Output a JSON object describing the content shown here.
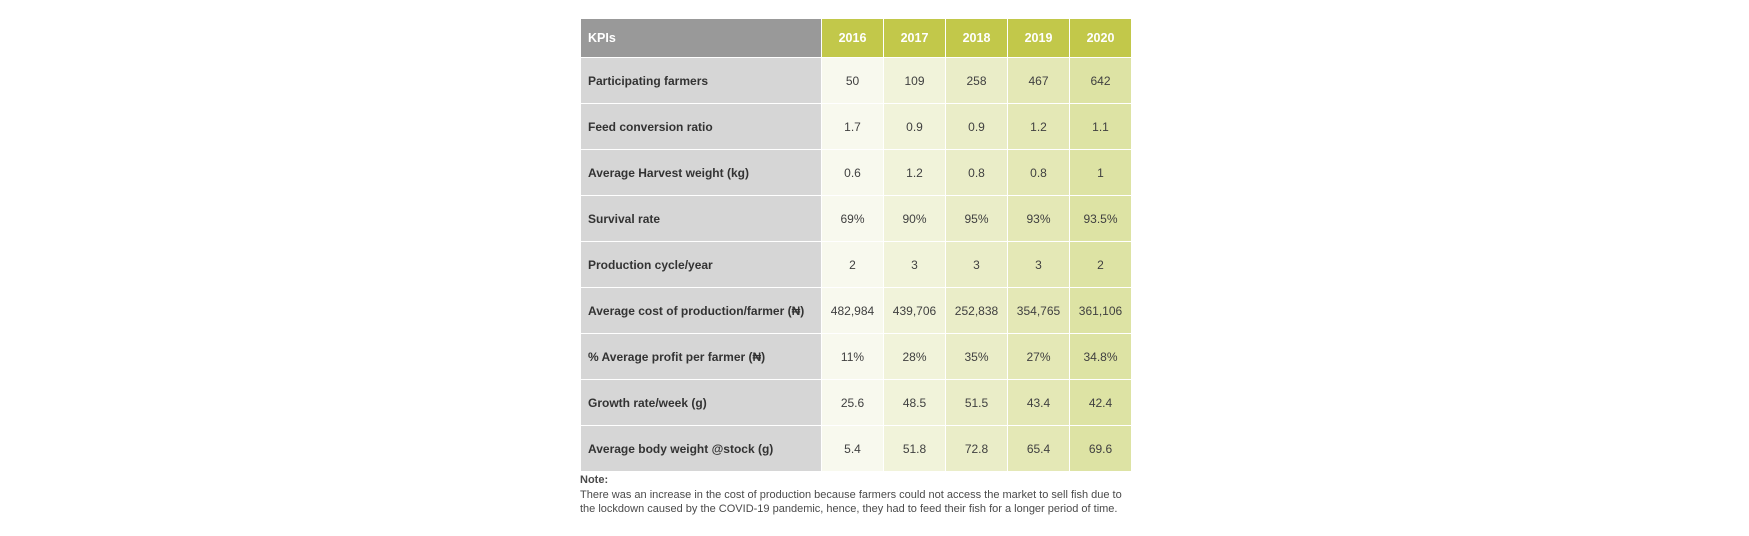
{
  "table": {
    "header": {
      "kpi_label": "KPIs",
      "years": [
        "2016",
        "2017",
        "2018",
        "2019",
        "2020"
      ]
    },
    "rows": [
      {
        "label": "Participating farmers",
        "values": [
          "50",
          "109",
          "258",
          "467",
          "642"
        ]
      },
      {
        "label": "Feed conversion ratio",
        "values": [
          "1.7",
          "0.9",
          "0.9",
          "1.2",
          "1.1"
        ]
      },
      {
        "label": "Average Harvest weight (kg)",
        "values": [
          "0.6",
          "1.2",
          "0.8",
          "0.8",
          "1"
        ]
      },
      {
        "label": "Survival rate",
        "values": [
          "69%",
          "90%",
          "95%",
          "93%",
          "93.5%"
        ]
      },
      {
        "label": "Production cycle/year",
        "values": [
          "2",
          "3",
          "3",
          "3",
          "2"
        ]
      },
      {
        "label": "Average cost of production/farmer (₦)",
        "values": [
          "482,984",
          "439,706",
          "252,838",
          "354,765",
          "361,106"
        ]
      },
      {
        "label": "% Average profit per farmer (₦)",
        "values": [
          "11%",
          "28%",
          "35%",
          "27%",
          "34.8%"
        ]
      },
      {
        "label": "Growth rate/week (g)",
        "values": [
          "25.6",
          "48.5",
          "51.5",
          "43.4",
          "42.4"
        ]
      },
      {
        "label": "Average body weight @stock (g)",
        "values": [
          "5.4",
          "51.8",
          "72.8",
          "65.4",
          "69.6"
        ]
      }
    ]
  },
  "note": {
    "title": "Note:",
    "text": "There was an increase in the cost of production because farmers could not access the market to sell fish due to the lockdown caused by the COVID-19 pandemic, hence, they had to feed their fish for a longer period of time."
  },
  "colors": {
    "header_kpi": "#999999",
    "header_year": "#c2c84a",
    "label_cell": "#d6d6d6"
  }
}
